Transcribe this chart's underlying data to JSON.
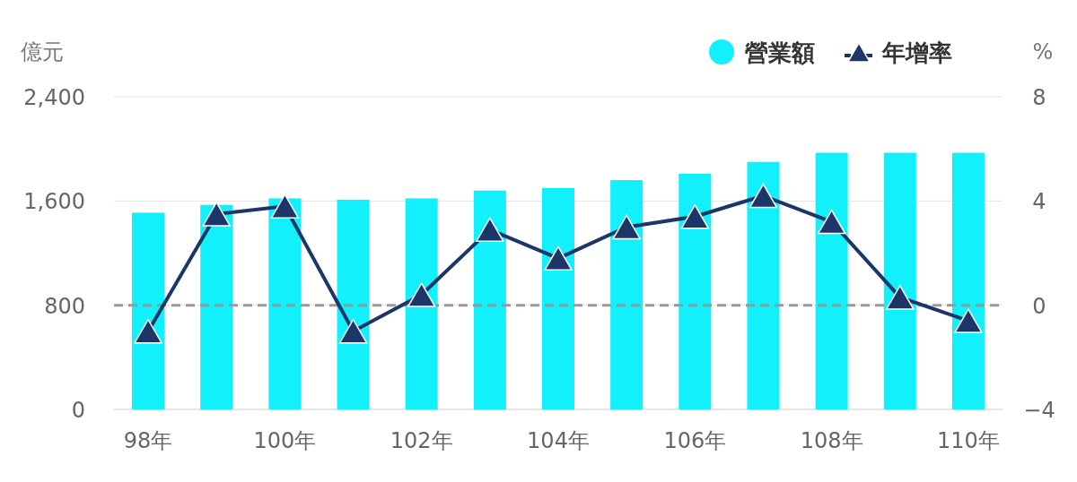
{
  "chart_data": {
    "type": "bar",
    "ylabel": "億元",
    "y2label": "%",
    "categories": [
      "98年",
      null,
      "100年",
      null,
      "102年",
      null,
      "104年",
      null,
      "106年",
      null,
      "108年",
      null,
      "110年"
    ],
    "series": [
      {
        "name": "營業額",
        "color": "#12f0fb",
        "values": [
          1510,
          1570,
          1620,
          1610,
          1620,
          1680,
          1700,
          1760,
          1810,
          1900,
          1970,
          1970,
          1970
        ]
      },
      {
        "name": "年增率",
        "type": "line",
        "axis": "y2",
        "color": "#1c3669",
        "marker": "triangle",
        "line_style": "solid",
        "values": [
          -1.0,
          3.5,
          3.8,
          -1.0,
          0.4,
          2.9,
          1.8,
          3.0,
          3.4,
          4.2,
          3.2,
          0.3,
          -0.6
        ]
      }
    ],
    "ylim": [
      0,
      2400
    ],
    "yticks": [
      0,
      {
        "value": 800,
        "label": "800"
      },
      {
        "value": 1600,
        "label": "1,600"
      },
      {
        "value": 2400,
        "label": "2,400"
      }
    ],
    "y2lim": [
      -4,
      8
    ],
    "y2ticks": [
      {
        "value": -4,
        "label": "−4"
      },
      0,
      4,
      8
    ],
    "ref_lines": [
      {
        "axis": "y2",
        "value": 0,
        "color": "#999999",
        "line_style": "dashed"
      }
    ],
    "grid": "y",
    "legend": "top right"
  }
}
